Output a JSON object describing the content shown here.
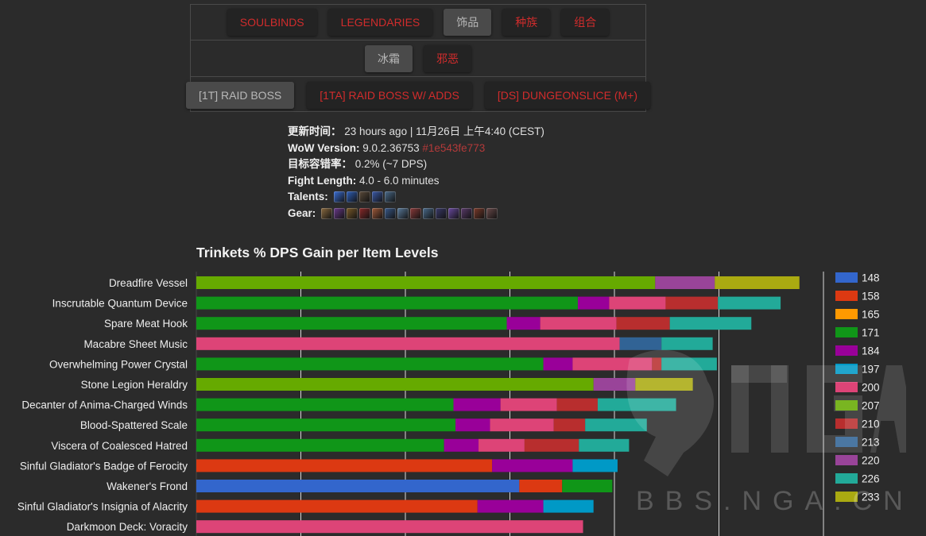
{
  "nav": {
    "row1": [
      {
        "label": "SOULBINDS",
        "active": false
      },
      {
        "label": "LEGENDARIES",
        "active": false
      },
      {
        "label": "饰品",
        "active": true
      },
      {
        "label": "种族",
        "active": false
      },
      {
        "label": "组合",
        "active": false
      }
    ],
    "row2": [
      {
        "label": "冰霜",
        "active": true
      },
      {
        "label": "邪恶",
        "active": false
      }
    ],
    "row3": [
      {
        "label": "[1T] RAID BOSS",
        "active": true
      },
      {
        "label": "[1TA] RAID BOSS W/ ADDS",
        "active": false
      },
      {
        "label": "[DS] DUNGEONSLICE (M+)",
        "active": false
      }
    ]
  },
  "info": {
    "update_key": "更新时间：",
    "update_value": "23 hours ago | 11月26日 上午4:40 (CEST)",
    "version_key": "WoW Version:",
    "version_value": "9.0.2.36753",
    "version_hash": "#1e543fe773",
    "error_key": "目标容错率：",
    "error_value": "0.2% (~7 DPS)",
    "fight_key": "Fight Length:",
    "fight_value": "4.0 - 6.0 minutes",
    "talents_key": "Talents:",
    "gear_key": "Gear:",
    "talent_icons": [
      "#3a6fd8",
      "#2f5fb8",
      "#5a4a3a",
      "#3b5aa8",
      "#4a6a8a"
    ],
    "gear_icons": [
      "#8a6a40",
      "#6a3a8a",
      "#7a5a2a",
      "#8a2a2a",
      "#a05a3a",
      "#3a5a8a",
      "#5a7a9a",
      "#8a3a3a",
      "#4a6a8a",
      "#3a3a6a",
      "#6a4aa0",
      "#5a3a6a",
      "#7a3a2a",
      "#6a4a4a"
    ]
  },
  "watermark": {
    "text": "BBS.NGA.CN"
  },
  "chart_data": {
    "type": "bar",
    "stacked": true,
    "orientation": "horizontal",
    "title": "Trinkets % DPS Gain per Item Levels",
    "legend_position": "right",
    "gridlines": true,
    "xlim": [
      0,
      6.0
    ],
    "legend": [
      {
        "name": "148",
        "color": "#3366cc"
      },
      {
        "name": "158",
        "color": "#dc3912"
      },
      {
        "name": "165",
        "color": "#ff9900"
      },
      {
        "name": "171",
        "color": "#109618"
      },
      {
        "name": "184",
        "color": "#990099"
      },
      {
        "name": "197",
        "color": "#0099c6"
      },
      {
        "name": "200",
        "color": "#dd4477"
      },
      {
        "name": "207",
        "color": "#66aa00"
      },
      {
        "name": "210",
        "color": "#b82e2e"
      },
      {
        "name": "213",
        "color": "#316395"
      },
      {
        "name": "220",
        "color": "#994499"
      },
      {
        "name": "226",
        "color": "#22aa99"
      },
      {
        "name": "233",
        "color": "#aaaa11"
      }
    ],
    "categories": [
      {
        "name": "Dreadfire Vessel",
        "segments": [
          [
            "207",
            4.39
          ],
          [
            "220",
            0.57
          ],
          [
            "233",
            0.81
          ]
        ]
      },
      {
        "name": "Inscrutable Quantum Device",
        "segments": [
          [
            "171",
            3.65
          ],
          [
            "184",
            0.3
          ],
          [
            "200",
            0.54
          ],
          [
            "210",
            0.5
          ],
          [
            "226",
            0.6
          ]
        ]
      },
      {
        "name": "Spare Meat Hook",
        "segments": [
          [
            "171",
            2.97
          ],
          [
            "184",
            0.32
          ],
          [
            "200",
            0.73
          ],
          [
            "210",
            0.51
          ],
          [
            "226",
            0.78
          ]
        ]
      },
      {
        "name": "Macabre Sheet Music",
        "segments": [
          [
            "200",
            4.05
          ],
          [
            "213",
            0.4
          ],
          [
            "226",
            0.49
          ]
        ]
      },
      {
        "name": "Overwhelming Power Crystal",
        "segments": [
          [
            "171",
            3.32
          ],
          [
            "184",
            0.28
          ],
          [
            "200",
            0.76
          ],
          [
            "210",
            0.09
          ],
          [
            "226",
            0.53
          ]
        ]
      },
      {
        "name": "Stone Legion Heraldry",
        "segments": [
          [
            "207",
            3.8
          ],
          [
            "220",
            0.4
          ],
          [
            "233",
            0.55
          ]
        ]
      },
      {
        "name": "Decanter of Anima-Charged Winds",
        "segments": [
          [
            "171",
            2.46
          ],
          [
            "184",
            0.45
          ],
          [
            "200",
            0.54
          ],
          [
            "210",
            0.39
          ],
          [
            "226",
            0.75
          ]
        ]
      },
      {
        "name": "Blood-Spattered Scale",
        "segments": [
          [
            "171",
            2.48
          ],
          [
            "184",
            0.33
          ],
          [
            "200",
            0.61
          ],
          [
            "210",
            0.3
          ],
          [
            "226",
            0.59
          ]
        ]
      },
      {
        "name": "Viscera of Coalesced Hatred",
        "segments": [
          [
            "171",
            2.37
          ],
          [
            "184",
            0.33
          ],
          [
            "200",
            0.44
          ],
          [
            "210",
            0.52
          ],
          [
            "226",
            0.48
          ]
        ]
      },
      {
        "name": "Sinful Gladiator's Badge of Ferocity",
        "segments": [
          [
            "158",
            2.83
          ],
          [
            "184",
            0.77
          ],
          [
            "197",
            0.43
          ]
        ]
      },
      {
        "name": "Wakener's Frond",
        "segments": [
          [
            "148",
            3.09
          ],
          [
            "158",
            0.41
          ],
          [
            "171",
            0.48
          ]
        ]
      },
      {
        "name": "Sinful Gladiator's Insignia of Alacrity",
        "segments": [
          [
            "158",
            2.69
          ],
          [
            "184",
            0.63
          ],
          [
            "197",
            0.48
          ]
        ]
      },
      {
        "name": "Darkmoon Deck: Voracity",
        "segments": [
          [
            "200",
            3.7
          ]
        ]
      }
    ]
  }
}
